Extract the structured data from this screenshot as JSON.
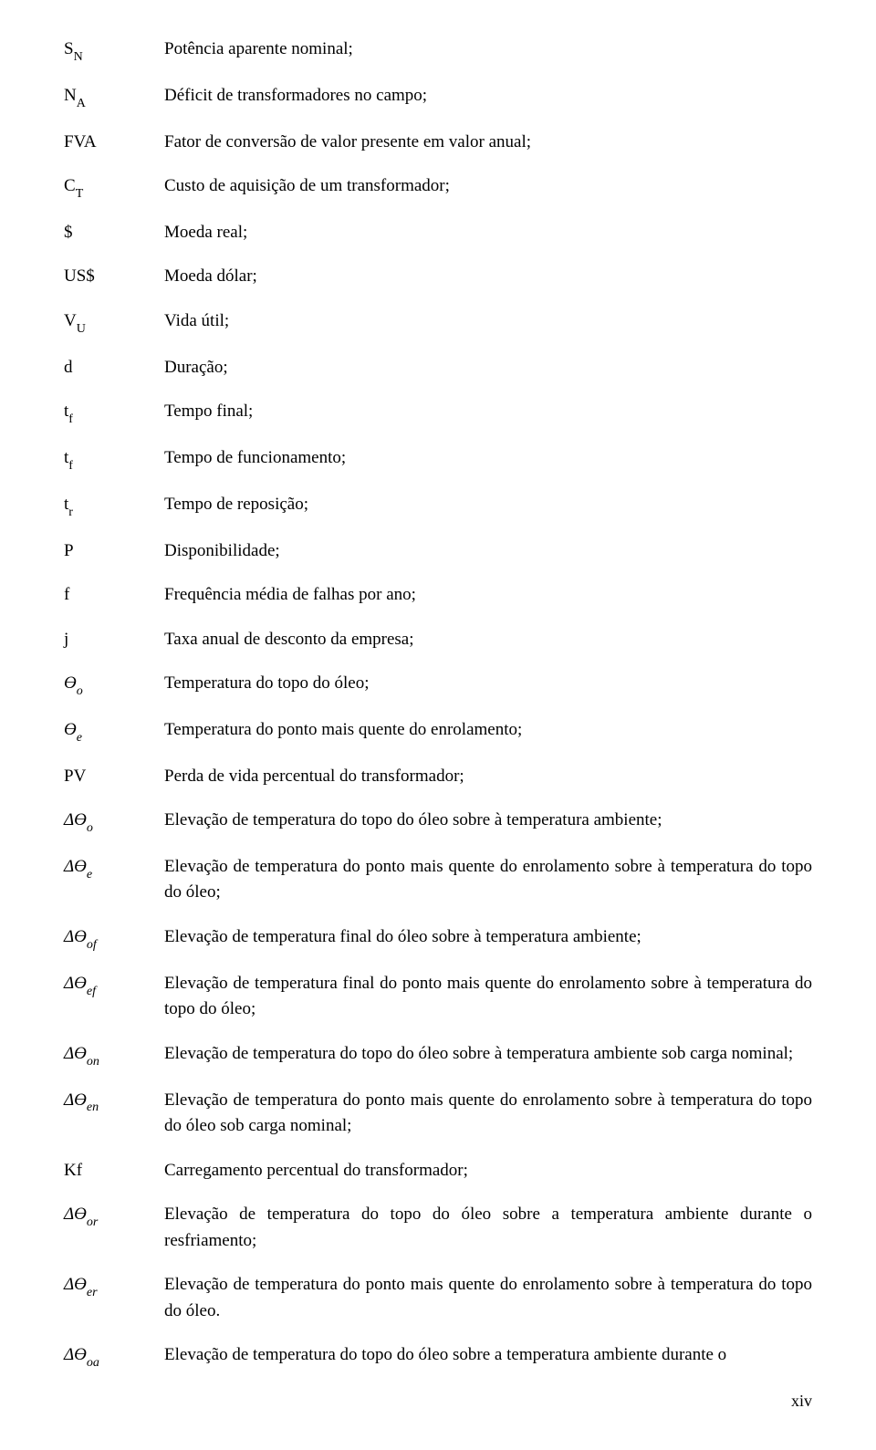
{
  "rows": [
    {
      "sym_pre": "S",
      "sym_sub": "N",
      "def": "Potência aparente nominal;"
    },
    {
      "sym_pre": "N",
      "sym_sub": "A",
      "def": "Déficit de transformadores no campo;"
    },
    {
      "sym_pre": "FVA",
      "sym_sub": "",
      "def": "Fator de conversão de valor presente em valor anual;"
    },
    {
      "sym_pre": "C",
      "sym_sub": "T",
      "def": "Custo de aquisição de um transformador;"
    },
    {
      "sym_pre": "$",
      "sym_sub": "",
      "def": "Moeda real;"
    },
    {
      "sym_pre": "US$",
      "sym_sub": "",
      "def": "Moeda dólar;"
    },
    {
      "sym_pre": "V",
      "sym_sub": "U",
      "def": "Vida útil;"
    },
    {
      "sym_pre": "d",
      "sym_sub": "",
      "def": "Duração;"
    },
    {
      "sym_pre": "t",
      "sym_sub": "f",
      "def": "Tempo final;"
    },
    {
      "sym_pre": "t",
      "sym_sub": "f",
      "def": "Tempo de funcionamento;"
    },
    {
      "sym_pre": "t",
      "sym_sub": "r",
      "def": "Tempo de reposição;"
    },
    {
      "sym_pre": "P",
      "sym_sub": "",
      "def": "Disponibilidade;"
    },
    {
      "sym_pre": "f",
      "sym_sub": "",
      "def": "Frequência média de falhas por ano;"
    },
    {
      "sym_pre": "j",
      "sym_sub": "",
      "def": "Taxa anual de desconto da empresa;"
    },
    {
      "sym_pre": "ϴ",
      "sym_sub": "o",
      "italic": true,
      "def": "Temperatura do topo do óleo;"
    },
    {
      "sym_pre": "ϴ",
      "sym_sub": "e",
      "italic": true,
      "def": "Temperatura do ponto mais quente do enrolamento;"
    },
    {
      "sym_pre": "PV",
      "sym_sub": "",
      "def": "Perda de vida percentual do transformador;"
    },
    {
      "sym_pre": "Δϴ",
      "sym_sub": "o",
      "italic": true,
      "def": "Elevação de temperatura do topo do óleo sobre à temperatura ambiente;"
    },
    {
      "sym_pre": "Δϴ",
      "sym_sub": "e",
      "italic": true,
      "def": "Elevação de temperatura do ponto mais quente do enrolamento sobre à temperatura do topo do óleo;"
    },
    {
      "sym_pre": "Δϴ",
      "sym_sub": "of",
      "italic": true,
      "def": "Elevação de temperatura final do óleo sobre à temperatura ambiente;"
    },
    {
      "sym_pre": "Δϴ",
      "sym_sub": "ef",
      "italic": true,
      "def": "Elevação de temperatura final do ponto mais quente do enrolamento sobre à temperatura do topo do óleo;"
    },
    {
      "sym_pre": "Δϴ",
      "sym_sub": "on",
      "italic": true,
      "def": "Elevação de temperatura do topo do óleo sobre à temperatura ambiente sob carga nominal;"
    },
    {
      "sym_pre": "Δϴ",
      "sym_sub": "en",
      "italic": true,
      "def": "Elevação de temperatura do ponto mais quente do enrolamento sobre à temperatura do topo do óleo sob carga nominal;"
    },
    {
      "sym_pre": "Kf",
      "sym_sub": "",
      "def": "Carregamento percentual do transformador;"
    },
    {
      "sym_pre": "Δϴ",
      "sym_sub": "or",
      "italic": true,
      "def": "Elevação de temperatura do topo do óleo sobre a temperatura ambiente durante o resfriamento;"
    },
    {
      "sym_pre": "Δϴ",
      "sym_sub": "er",
      "italic": true,
      "def": "Elevação de temperatura do ponto mais quente do enrolamento sobre à temperatura do topo do óleo."
    },
    {
      "sym_pre": "Δϴ",
      "sym_sub": "oa",
      "italic": true,
      "def": "Elevação de temperatura do topo do óleo sobre a temperatura ambiente durante o"
    }
  ],
  "page_number": "xiv"
}
